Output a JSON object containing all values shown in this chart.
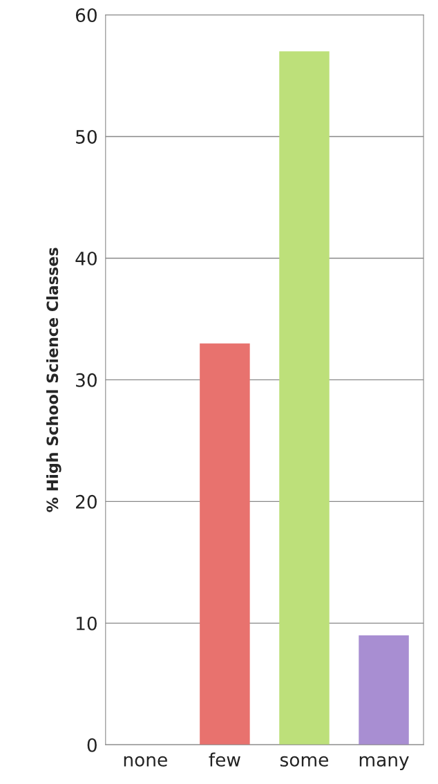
{
  "chart_data": {
    "type": "bar",
    "ylabel": "% High School Science Classes",
    "categories": [
      "none",
      "few",
      "some",
      "many"
    ],
    "values": [
      0,
      33,
      57,
      9
    ],
    "colors": [
      null,
      "#e8726e",
      "#bde07a",
      "#a88ed2"
    ],
    "ylim": [
      0,
      60
    ],
    "yticks": [
      0,
      10,
      20,
      30,
      40,
      50,
      60
    ],
    "grid": "y",
    "legend": false
  }
}
